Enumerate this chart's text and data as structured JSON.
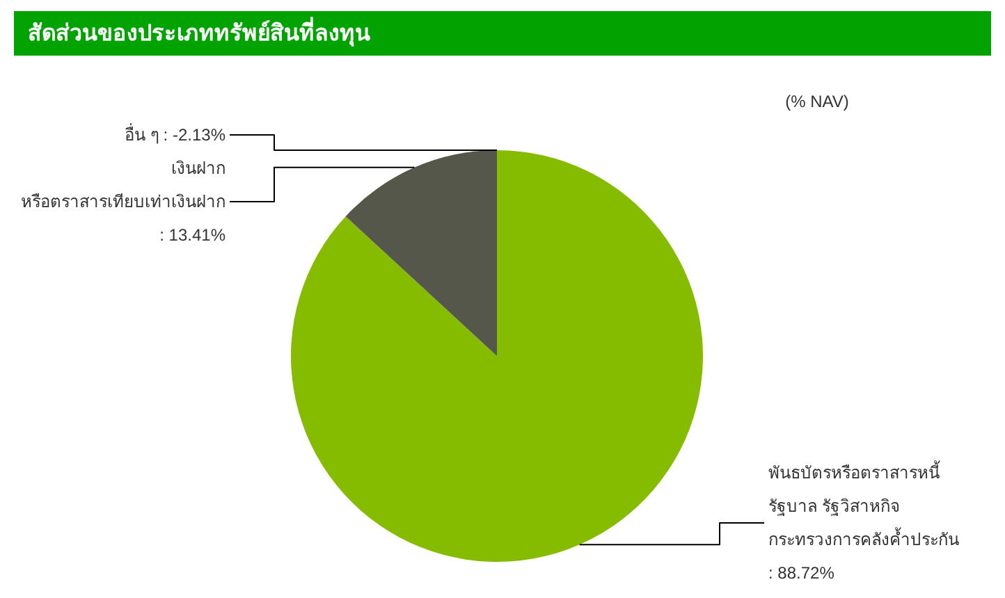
{
  "chart_data": {
    "type": "pie",
    "title": "สัดส่วนของประเภททรัพย์สินที่ลงทุน",
    "subtitle": "(% NAV)",
    "categories": [
      "พันธบัตรหรือตราสารหนี้\nรัฐบาล รัฐวิสาหกิจ\nกระทรวงการคลังค้ำประกัน",
      "เงินฝาก\nหรือตราสารเทียบเท่าเงินฝาก"
    ],
    "values": [
      88.72,
      13.41
    ],
    "value_labels": [
      ": 88.72%",
      ": 13.41%"
    ],
    "colors": [
      "#85bc00",
      "#55574b"
    ],
    "annotations": [
      "อื่น ๆ : -2.13%"
    ]
  }
}
